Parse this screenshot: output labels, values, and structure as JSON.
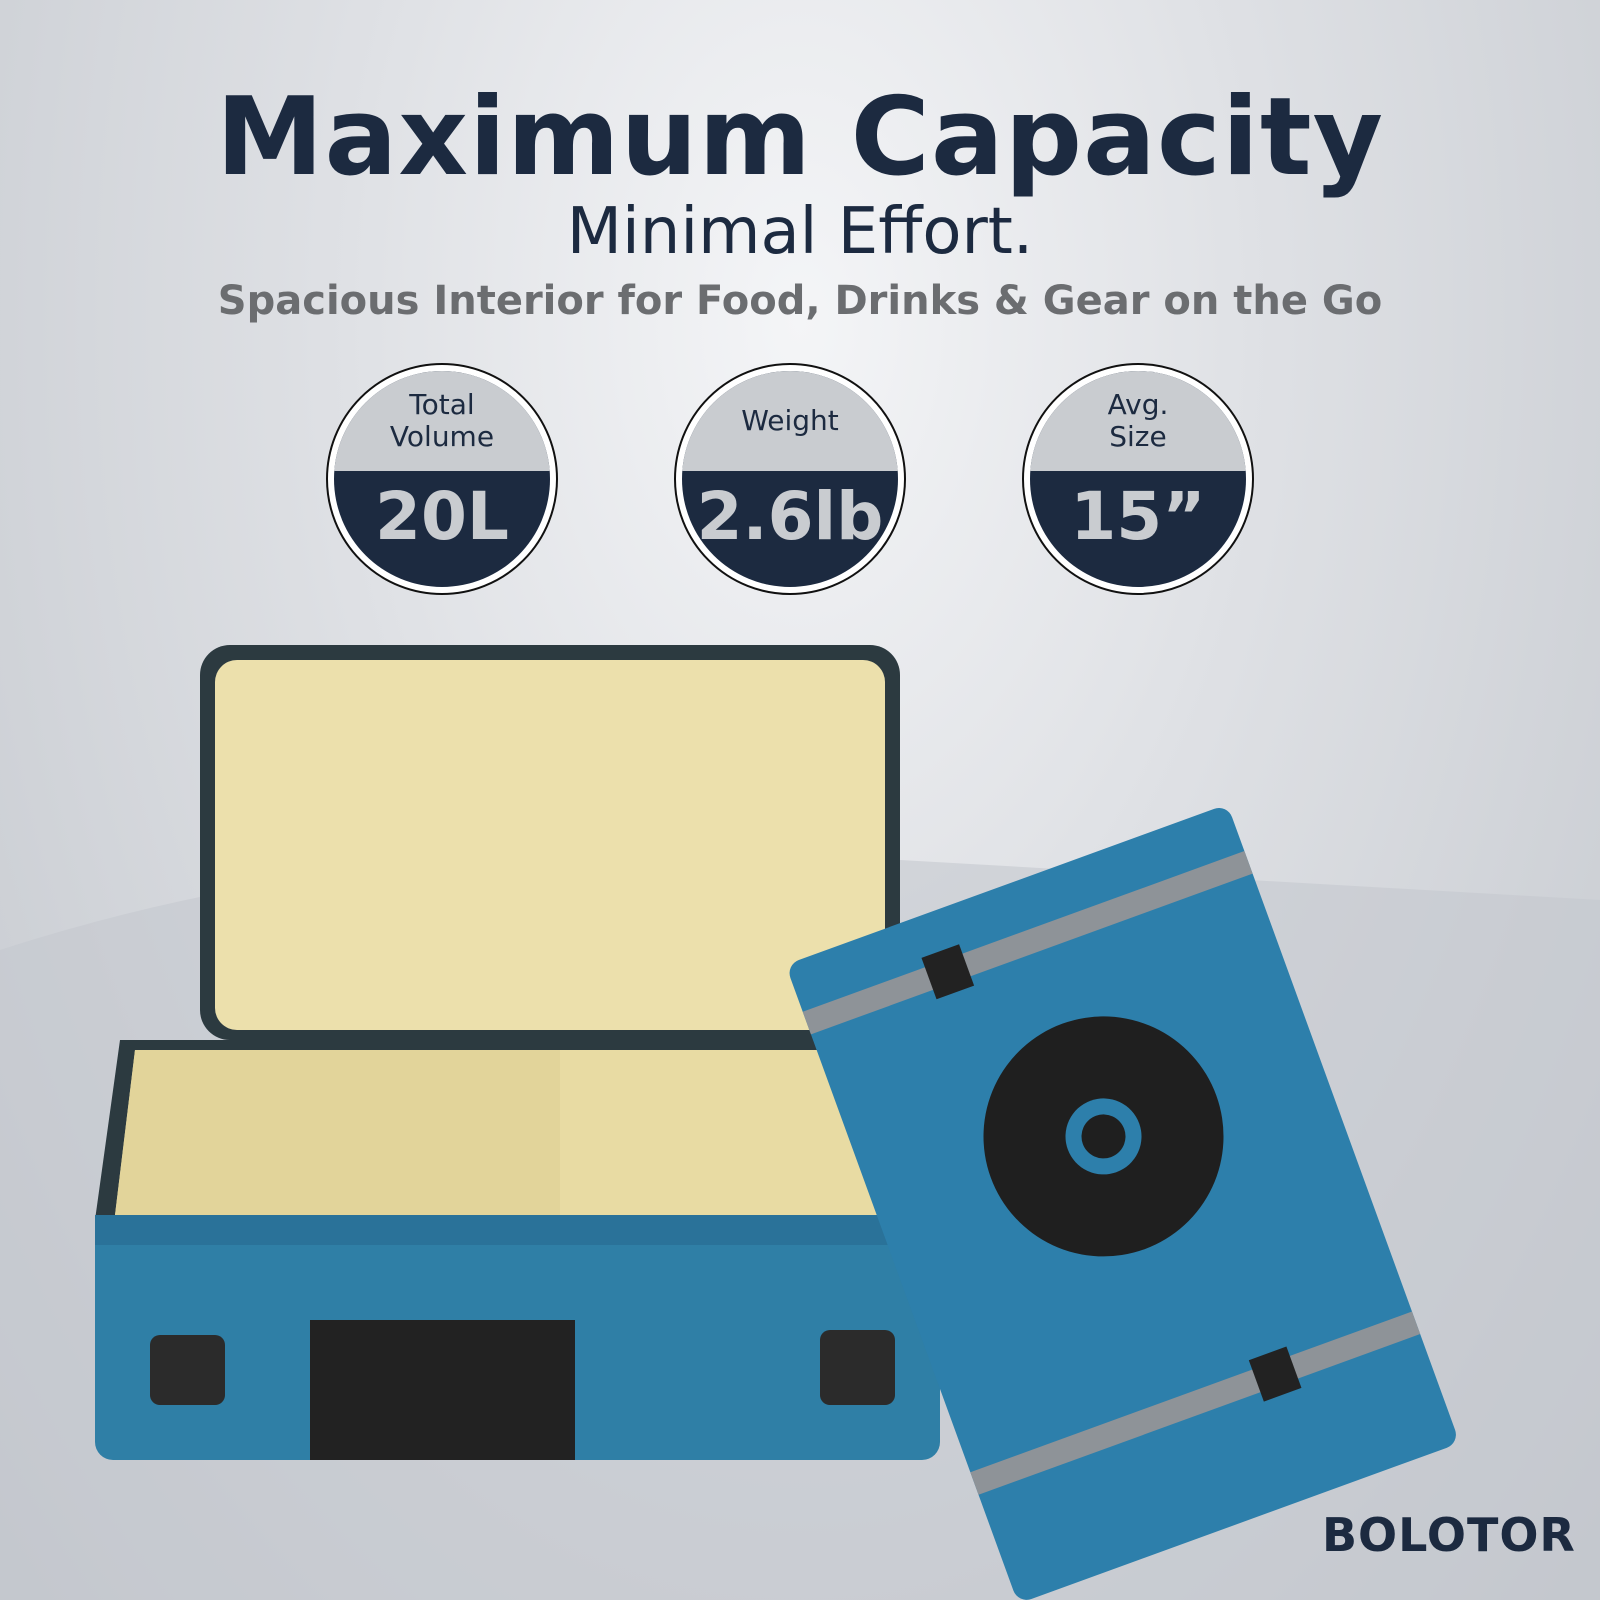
{
  "headline": "Maximum Capacity",
  "subheadline": "Minimal Effort.",
  "tagline": "Spacious Interior for Food, Drinks & Gear on the Go",
  "specs": [
    {
      "label": "Total\nVolume",
      "value": "20L"
    },
    {
      "label": "Weight",
      "value": "2.6lb"
    },
    {
      "label": "Avg.\nSize",
      "value": "15”"
    }
  ],
  "brand": "BOLOTOR",
  "colors": {
    "navy": "#1c2a40",
    "bag_blue": "#2f7fa6",
    "liner": "#ece0ac"
  }
}
